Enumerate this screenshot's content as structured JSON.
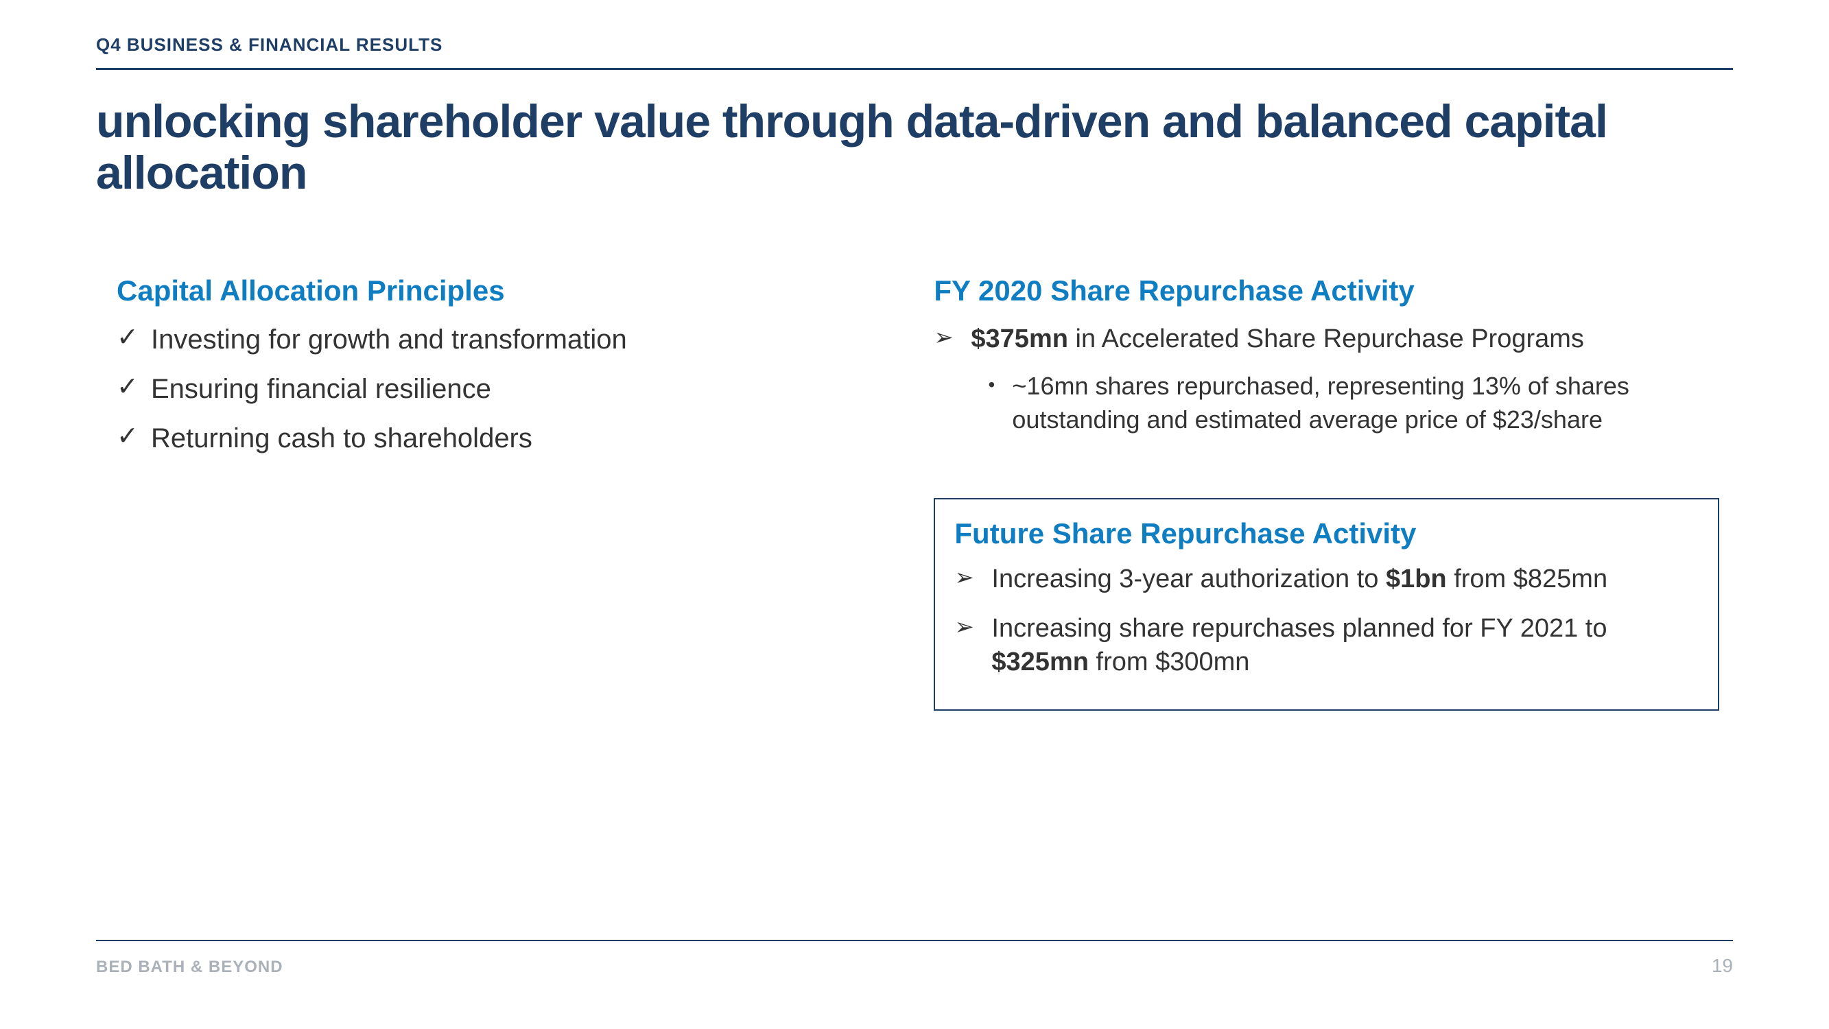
{
  "colors": {
    "navy": "#1f3e66",
    "blue": "#0f7dc2",
    "body": "#333333",
    "muted": "#aab1b8",
    "background": "#ffffff"
  },
  "typography": {
    "section_label_pt": 26,
    "title_pt": 68,
    "subhead_pt": 42,
    "body_pt": 40,
    "body_right_pt": 38,
    "sub_bullet_pt": 36,
    "footer_pt": 24,
    "page_num_pt": 28
  },
  "header": {
    "section_label": "Q4 BUSINESS & FINANCIAL RESULTS"
  },
  "title": "unlocking shareholder value through data-driven and balanced capital allocation",
  "left": {
    "heading": "Capital Allocation Principles",
    "items": [
      "Investing for growth and transformation",
      "Ensuring financial resilience",
      "Returning cash to shareholders"
    ]
  },
  "right_current": {
    "heading": "FY 2020 Share Repurchase Activity",
    "items": [
      {
        "html": "<b>$375mn</b> in Accelerated Share Repurchase Programs",
        "sub": [
          "~16mn shares repurchased, representing 13% of shares outstanding and estimated average price of $23/share"
        ]
      }
    ]
  },
  "right_future": {
    "heading": "Future Share Repurchase Activity",
    "items": [
      {
        "html": "Increasing 3-year authorization to <b>$1bn</b> from $825mn"
      },
      {
        "html": "Increasing share repurchases planned for FY 2021 to <b>$325mn</b> from $300mn"
      }
    ]
  },
  "footer": {
    "brand": "BED BATH & BEYOND",
    "page_number": "19"
  }
}
